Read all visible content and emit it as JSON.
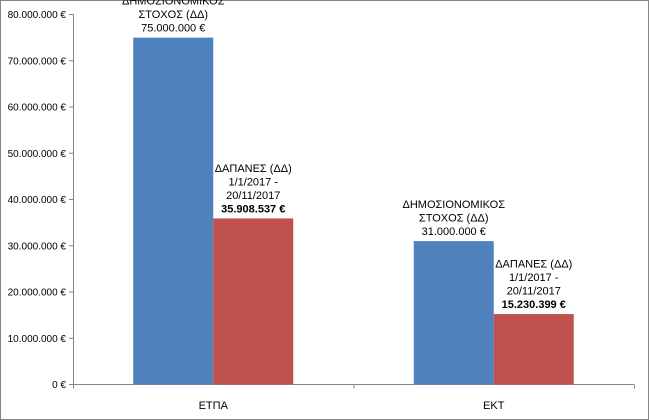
{
  "chart_data": {
    "type": "bar",
    "categories": [
      "ΕΤΠΑ",
      "ΕΚΤ"
    ],
    "series": [
      {
        "values": [
          75000000,
          31000000
        ],
        "color": "#4f81bd",
        "labels": [
          {
            "lines": [
              "ΔΗΜΟΣΙΟΝΟΜΙΚΟΣ",
              "ΣΤΟΧΟΣ (ΔΔ)"
            ],
            "value_text": "75.000.000 €",
            "value_bold": false
          },
          {
            "lines": [
              "ΔΗΜΟΣΙΟΝΟΜΙΚΟΣ",
              "ΣΤΟΧΟΣ (ΔΔ)"
            ],
            "value_text": "31.000.000 €",
            "value_bold": false
          }
        ]
      },
      {
        "values": [
          35908537,
          15230399
        ],
        "color": "#c0504d",
        "labels": [
          {
            "lines": [
              "ΔΑΠΑΝΕΣ  (ΔΔ)",
              "1/1/2017 -",
              "20/11/2017"
            ],
            "value_text": "35.908.537 €",
            "value_bold": true
          },
          {
            "lines": [
              "ΔΑΠΑΝΕΣ  (ΔΔ)",
              "1/1/2017 -",
              "20/11/2017"
            ],
            "value_text": "15.230.399 €",
            "value_bold": true
          }
        ]
      }
    ],
    "yticks": [
      0,
      10000000,
      20000000,
      30000000,
      40000000,
      50000000,
      60000000,
      70000000,
      80000000
    ],
    "ytick_labels": [
      "0 €",
      "10.000.000 €",
      "20.000.000 €",
      "30.000.000 €",
      "40.000.000 €",
      "50.000.000 €",
      "60.000.000 €",
      "70.000.000 €",
      "80.000.000 €"
    ],
    "ylim": [
      0,
      80000000
    ],
    "title": "",
    "xlabel": "",
    "ylabel": "",
    "grid": false,
    "legend": "none"
  }
}
